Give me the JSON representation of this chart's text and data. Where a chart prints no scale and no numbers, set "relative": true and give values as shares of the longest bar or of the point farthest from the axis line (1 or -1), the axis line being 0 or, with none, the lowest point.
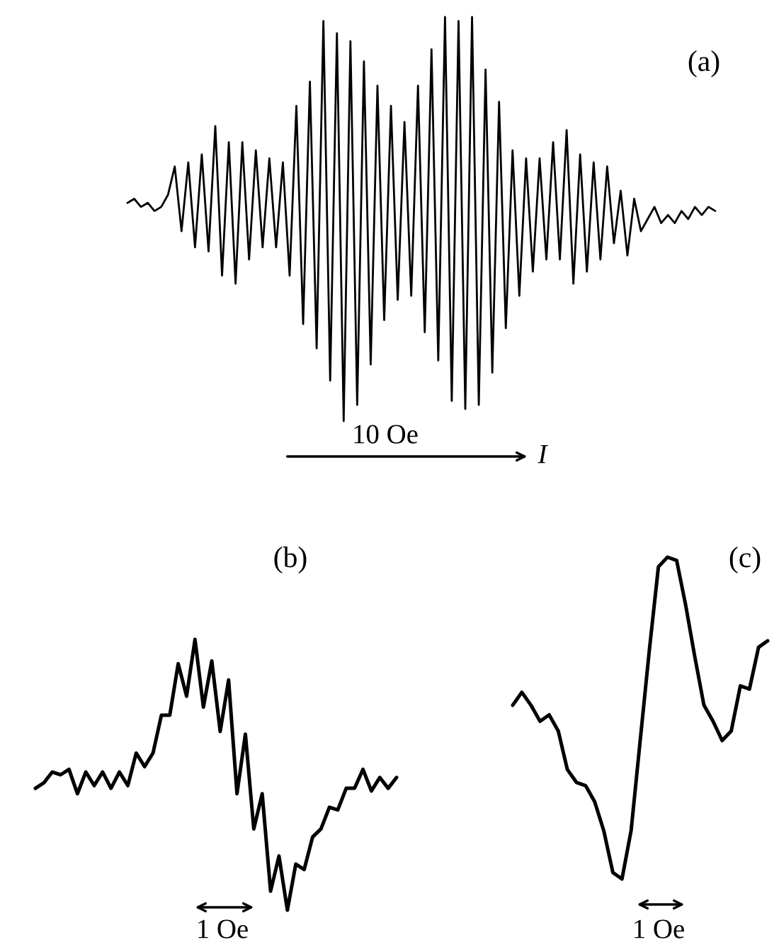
{
  "chart_data": [
    {
      "type": "line",
      "title": "(a)",
      "relative": true,
      "line_style": "solid",
      "categories": [
        null,
        null,
        null,
        null,
        null,
        null,
        null,
        null,
        null,
        null,
        null,
        null,
        null,
        null,
        null,
        null,
        null,
        null,
        null,
        null,
        null,
        null,
        null,
        null,
        null,
        null,
        null,
        null,
        null,
        null,
        null,
        null,
        null,
        null,
        null,
        null,
        null,
        null,
        null,
        null,
        null,
        null,
        null,
        null,
        null,
        null,
        null,
        null,
        null,
        null,
        null,
        null,
        null,
        null,
        null,
        null,
        null,
        null,
        null,
        null,
        null,
        null,
        null,
        null,
        null,
        null,
        null,
        null,
        null,
        null,
        null,
        null,
        null,
        null,
        null,
        null,
        null,
        null,
        null,
        null,
        null,
        null,
        null,
        null,
        null,
        null,
        null,
        null
      ],
      "series": [
        {
          "color": "#000000",
          "values": [
            0.54,
            0.55,
            0.53,
            0.54,
            0.52,
            0.53,
            0.56,
            0.63,
            0.47,
            0.64,
            0.43,
            0.66,
            0.42,
            0.73,
            0.36,
            0.69,
            0.34,
            0.69,
            0.4,
            0.67,
            0.43,
            0.65,
            0.43,
            0.64,
            0.36,
            0.78,
            0.24,
            0.84,
            0.18,
            0.99,
            0.1,
            0.96,
            0,
            0.94,
            0.04,
            0.89,
            0.14,
            0.83,
            0.25,
            0.78,
            0.3,
            0.74,
            0.31,
            0.83,
            0.22,
            0.92,
            0.15,
            1,
            0.05,
            0.99,
            0.03,
            1,
            0.04,
            0.87,
            0.12,
            0.79,
            0.23,
            0.67,
            0.31,
            0.65,
            0.37,
            0.65,
            0.4,
            0.69,
            0.4,
            0.72,
            0.34,
            0.66,
            0.37,
            0.64,
            0.4,
            0.63,
            0.44,
            0.57,
            0.41,
            0.55,
            0.47,
            0.5,
            0.53,
            0.49,
            0.51,
            0.49,
            0.52,
            0.5,
            0.53,
            0.51,
            0.53,
            0.52
          ]
        }
      ],
      "annotations": [
        "10 Oe",
        "I"
      ]
    },
    {
      "type": "line",
      "title": "(b)",
      "relative": true,
      "line_style": "solid",
      "categories": [
        null,
        null,
        null,
        null,
        null,
        null,
        null,
        null,
        null,
        null,
        null,
        null,
        null,
        null,
        null,
        null,
        null,
        null,
        null,
        null,
        null,
        null,
        null,
        null,
        null,
        null,
        null,
        null,
        null,
        null,
        null,
        null,
        null,
        null,
        null,
        null,
        null,
        null,
        null,
        null,
        null,
        null,
        null,
        null
      ],
      "series": [
        {
          "color": "#000000",
          "values": [
            0.45,
            0.47,
            0.51,
            0.5,
            0.52,
            0.43,
            0.51,
            0.46,
            0.51,
            0.45,
            0.51,
            0.46,
            0.58,
            0.53,
            0.58,
            0.72,
            0.72,
            0.91,
            0.79,
            1,
            0.75,
            0.92,
            0.66,
            0.85,
            0.43,
            0.65,
            0.3,
            0.43,
            0.07,
            0.2,
            0,
            0.17,
            0.15,
            0.27,
            0.3,
            0.38,
            0.37,
            0.45,
            0.45,
            0.52,
            0.44,
            0.49,
            0.45,
            0.49
          ]
        }
      ],
      "annotations": [
        "1 Oe"
      ]
    },
    {
      "type": "line",
      "title": "(c)",
      "relative": true,
      "line_style": "solid",
      "categories": [
        null,
        null,
        null,
        null,
        null,
        null,
        null,
        null,
        null,
        null,
        null,
        null,
        null,
        null,
        null,
        null,
        null,
        null,
        null,
        null,
        null,
        null,
        null,
        null,
        null,
        null,
        null,
        null,
        null
      ],
      "series": [
        {
          "color": "#000000",
          "values": [
            0.54,
            0.58,
            0.54,
            0.49,
            0.51,
            0.46,
            0.34,
            0.3,
            0.29,
            0.24,
            0.15,
            0.02,
            0,
            0.15,
            0.43,
            0.71,
            0.97,
            1,
            0.99,
            0.85,
            0.69,
            0.54,
            0.49,
            0.43,
            0.46,
            0.6,
            0.59,
            0.72,
            0.74
          ]
        }
      ],
      "annotations": [
        "1 Oe"
      ]
    }
  ]
}
